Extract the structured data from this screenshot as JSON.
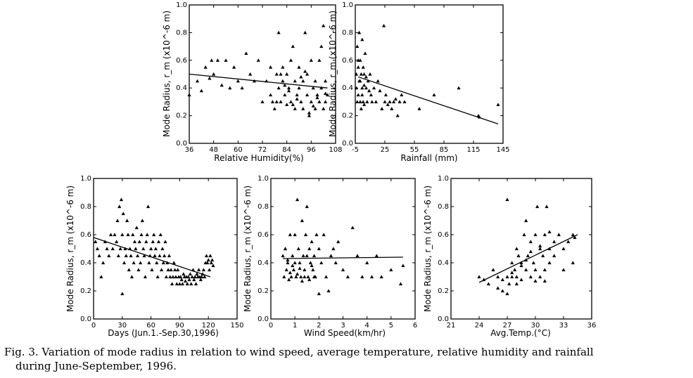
{
  "caption": {
    "line1": "Fig. 3. Variation of mode radius in relation to wind speed, average temperature, relative humidity and rainfall",
    "line2": "during June-September, 1996."
  },
  "chart_data": [
    {
      "id": "humidity",
      "type": "scatter",
      "xlabel": "Relative Humidity(%)",
      "ylabel": "Mode Radius, r_m (x10^-6 m)",
      "xlim": [
        36,
        108
      ],
      "ylim": [
        0,
        1.0
      ],
      "xticks": [
        "36",
        "48",
        "60",
        "72",
        "84",
        "96",
        "108"
      ],
      "yticks": [
        "0.0",
        "0.2",
        "0.4",
        "0.6",
        "0.8",
        "1.0"
      ],
      "x": [
        36,
        40,
        42,
        44,
        46,
        47,
        48,
        50,
        52,
        54,
        56,
        58,
        60,
        62,
        64,
        66,
        68,
        70,
        72,
        74,
        76,
        76,
        77,
        78,
        79,
        80,
        80,
        81,
        82,
        82,
        83,
        84,
        84,
        85,
        86,
        86,
        87,
        88,
        88,
        89,
        90,
        90,
        91,
        92,
        92,
        93,
        94,
        94,
        95,
        96,
        96,
        97,
        98,
        98,
        99,
        100,
        100,
        101,
        102,
        102,
        103,
        103,
        104,
        79,
        81,
        83,
        85,
        87,
        89,
        91,
        93,
        95,
        97,
        99,
        101,
        103
      ],
      "y": [
        0.35,
        0.45,
        0.38,
        0.55,
        0.47,
        0.6,
        0.5,
        0.6,
        0.42,
        0.6,
        0.4,
        0.55,
        0.45,
        0.4,
        0.65,
        0.5,
        0.45,
        0.6,
        0.3,
        0.45,
        0.35,
        0.55,
        0.3,
        0.25,
        0.5,
        0.8,
        0.4,
        0.3,
        0.55,
        0.45,
        0.35,
        0.5,
        0.28,
        0.4,
        0.6,
        0.3,
        0.7,
        0.45,
        0.25,
        0.35,
        0.4,
        0.55,
        0.3,
        0.25,
        0.45,
        0.8,
        0.35,
        0.5,
        0.2,
        0.3,
        0.6,
        0.4,
        0.25,
        0.45,
        0.35,
        0.6,
        0.3,
        0.4,
        0.25,
        0.85,
        0.3,
        0.45,
        0.35,
        0.3,
        0.5,
        0.42,
        0.38,
        0.28,
        0.32,
        0.48,
        0.52,
        0.22,
        0.27,
        0.33,
        0.7,
        0.36
      ],
      "trend": [
        [
          36,
          0.5
        ],
        [
          104,
          0.4
        ]
      ]
    },
    {
      "id": "rainfall",
      "type": "scatter",
      "xlabel": "Rainfall (mm)",
      "ylabel": "Mode Radius, r_m (x10^-6 m)",
      "xlim": [
        -5,
        145
      ],
      "ylim": [
        0,
        1.0
      ],
      "xticks": [
        "-5",
        "25",
        "55",
        "85",
        "115",
        "145"
      ],
      "yticks": [
        "0.0",
        "0.2",
        "0.4",
        "0.6",
        "0.8",
        "1.0"
      ],
      "x": [
        -4,
        -3,
        -3,
        -2,
        -2,
        -1,
        -1,
        0,
        0,
        1,
        1,
        2,
        2,
        3,
        3,
        4,
        4,
        5,
        6,
        7,
        8,
        9,
        10,
        11,
        12,
        14,
        16,
        18,
        20,
        22,
        24,
        25,
        26,
        28,
        30,
        32,
        34,
        36,
        38,
        40,
        42,
        45,
        60,
        75,
        100,
        120,
        121,
        140,
        -4,
        -2,
        0,
        2,
        4,
        6
      ],
      "y": [
        0.4,
        0.7,
        0.3,
        0.55,
        0.35,
        0.8,
        0.45,
        0.6,
        0.3,
        0.5,
        0.25,
        0.75,
        0.4,
        0.55,
        0.3,
        0.5,
        0.28,
        0.65,
        0.4,
        0.3,
        0.45,
        0.38,
        0.5,
        0.35,
        0.3,
        0.4,
        0.3,
        0.45,
        0.38,
        0.25,
        0.85,
        0.3,
        0.35,
        0.28,
        0.3,
        0.25,
        0.3,
        0.32,
        0.2,
        0.3,
        0.35,
        0.3,
        0.25,
        0.35,
        0.4,
        0.2,
        0.19,
        0.28,
        0.5,
        0.6,
        0.45,
        0.35,
        0.42,
        0.48
      ],
      "trend": [
        [
          -2,
          0.48
        ],
        [
          140,
          0.14
        ]
      ]
    },
    {
      "id": "days",
      "type": "scatter",
      "xlabel": "Days (Jun.1.-Sep.30,1996)",
      "ylabel": "Mode Radius, r_m (x10^-6 m)",
      "xlim": [
        0,
        150
      ],
      "ylim": [
        0,
        1.0
      ],
      "xticks": [
        "0",
        "30",
        "60",
        "90",
        "120",
        "150"
      ],
      "yticks": [
        "0.0",
        "0.2",
        "0.4",
        "0.6",
        "0.8",
        "1.0"
      ],
      "x": [
        2,
        4,
        6,
        8,
        10,
        12,
        14,
        16,
        18,
        20,
        22,
        24,
        25,
        26,
        27,
        28,
        29,
        30,
        31,
        32,
        33,
        34,
        35,
        36,
        37,
        38,
        39,
        40,
        41,
        42,
        43,
        44,
        45,
        46,
        47,
        48,
        49,
        50,
        51,
        52,
        53,
        54,
        55,
        56,
        57,
        58,
        59,
        60,
        61,
        62,
        63,
        64,
        65,
        66,
        67,
        68,
        69,
        70,
        71,
        72,
        73,
        74,
        75,
        76,
        77,
        78,
        79,
        80,
        81,
        82,
        83,
        84,
        85,
        86,
        87,
        88,
        89,
        90,
        91,
        92,
        93,
        94,
        95,
        96,
        97,
        98,
        99,
        100,
        101,
        102,
        103,
        104,
        105,
        106,
        107,
        108,
        109,
        110,
        111,
        112,
        113,
        114,
        115,
        116,
        117,
        118,
        119,
        120,
        121,
        122,
        123,
        124,
        125,
        30
      ],
      "y": [
        0.55,
        0.5,
        0.45,
        0.3,
        0.4,
        0.55,
        0.5,
        0.45,
        0.6,
        0.5,
        0.6,
        0.55,
        0.7,
        0.45,
        0.8,
        0.5,
        0.85,
        0.6,
        0.75,
        0.4,
        0.5,
        0.45,
        0.7,
        0.6,
        0.35,
        0.5,
        0.45,
        0.3,
        0.6,
        0.4,
        0.55,
        0.5,
        0.65,
        0.45,
        0.35,
        0.55,
        0.4,
        0.6,
        0.7,
        0.5,
        0.45,
        0.3,
        0.55,
        0.6,
        0.8,
        0.4,
        0.45,
        0.5,
        0.35,
        0.55,
        0.6,
        0.45,
        0.5,
        0.4,
        0.3,
        0.55,
        0.45,
        0.6,
        0.35,
        0.5,
        0.4,
        0.45,
        0.55,
        0.3,
        0.4,
        0.35,
        0.45,
        0.3,
        0.35,
        0.25,
        0.3,
        0.4,
        0.35,
        0.3,
        0.25,
        0.35,
        0.3,
        0.25,
        0.3,
        0.28,
        0.25,
        0.32,
        0.3,
        0.27,
        0.3,
        0.25,
        0.3,
        0.28,
        0.32,
        0.25,
        0.3,
        0.35,
        0.28,
        0.3,
        0.25,
        0.32,
        0.3,
        0.35,
        0.3,
        0.28,
        0.3,
        0.32,
        0.35,
        0.3,
        0.4,
        0.45,
        0.4,
        0.42,
        0.35,
        0.45,
        0.4,
        0.42,
        0.38,
        0.18
      ],
      "trend": [
        [
          0,
          0.58
        ],
        [
          122,
          0.3
        ]
      ]
    },
    {
      "id": "wind",
      "type": "scatter",
      "xlabel": "Wind Speed(km/hr)",
      "ylabel": "Mode Radius, r_m (x10^-6 m)",
      "xlim": [
        0,
        6
      ],
      "ylim": [
        0,
        1.0
      ],
      "xticks": [
        "0",
        "1",
        "2",
        "3",
        "4",
        "5",
        "6"
      ],
      "yticks": [
        "0.0",
        "0.2",
        "0.4",
        "0.6",
        "0.8",
        "1.0"
      ],
      "x": [
        0.5,
        0.55,
        0.6,
        0.65,
        0.7,
        0.75,
        0.8,
        0.85,
        0.9,
        0.95,
        1.0,
        1.05,
        1.1,
        1.15,
        1.2,
        1.25,
        1.3,
        1.35,
        1.4,
        1.45,
        1.5,
        1.55,
        1.6,
        1.65,
        1.7,
        1.75,
        1.8,
        1.85,
        1.9,
        2.0,
        2.1,
        2.2,
        2.3,
        2.4,
        2.5,
        2.6,
        2.7,
        2.8,
        3.0,
        3.2,
        3.4,
        3.6,
        3.8,
        4.0,
        4.2,
        4.4,
        4.6,
        5.0,
        5.4,
        5.5,
        0.7,
        0.9,
        1.1,
        1.3,
        1.5,
        1.7,
        0.6,
        0.8,
        1.0,
        1.2,
        1.4,
        1.6,
        1.8,
        2.0
      ],
      "y": [
        0.45,
        0.3,
        0.5,
        0.35,
        0.4,
        0.28,
        0.6,
        0.3,
        0.45,
        0.35,
        0.6,
        0.3,
        0.85,
        0.5,
        0.4,
        0.3,
        0.7,
        0.45,
        0.35,
        0.6,
        0.8,
        0.3,
        0.5,
        0.4,
        0.55,
        0.35,
        0.45,
        0.3,
        0.6,
        0.5,
        0.4,
        0.6,
        0.3,
        0.2,
        0.45,
        0.5,
        0.4,
        0.55,
        0.35,
        0.3,
        0.65,
        0.45,
        0.3,
        0.4,
        0.3,
        0.45,
        0.3,
        0.35,
        0.25,
        0.38,
        0.42,
        0.38,
        0.32,
        0.27,
        0.45,
        0.38,
        0.5,
        0.33,
        0.4,
        0.36,
        0.3,
        0.28,
        0.3,
        0.18
      ],
      "trend": [
        [
          0.5,
          0.43
        ],
        [
          5.5,
          0.44
        ]
      ]
    },
    {
      "id": "temp",
      "type": "scatter",
      "xlabel": "Avg.Temp.(°C)",
      "ylabel": "Mode Radius, r_m (x10^-6 m)",
      "xlim": [
        21,
        36
      ],
      "ylim": [
        0,
        1.0
      ],
      "xticks": [
        "21",
        "24",
        "27",
        "30",
        "33",
        "36"
      ],
      "yticks": [
        "0.0",
        "0.2",
        "0.4",
        "0.6",
        "0.8",
        "1.0"
      ],
      "x": [
        24,
        24.5,
        25,
        25.5,
        26,
        26,
        26.5,
        27,
        27,
        27.2,
        27.5,
        27.5,
        27.8,
        28,
        28,
        28.2,
        28.5,
        28.5,
        28.8,
        29,
        29,
        29.2,
        29.5,
        29.5,
        29.8,
        30,
        30,
        30.2,
        30.5,
        30.5,
        30.8,
        31,
        31,
        31.2,
        31.5,
        31.5,
        32,
        32,
        32.5,
        33,
        33,
        33.5,
        34,
        34,
        34.2,
        27,
        28,
        29,
        30,
        31,
        26.5,
        27.5,
        28.5,
        29.5,
        30.5,
        31.5
      ],
      "y": [
        0.3,
        0.28,
        0.25,
        0.35,
        0.3,
        0.22,
        0.28,
        0.3,
        0.85,
        0.25,
        0.4,
        0.3,
        0.35,
        0.5,
        0.3,
        0.45,
        0.4,
        0.28,
        0.6,
        0.35,
        0.7,
        0.45,
        0.3,
        0.55,
        0.4,
        0.6,
        0.35,
        0.8,
        0.5,
        0.3,
        0.45,
        0.6,
        0.35,
        0.8,
        0.5,
        0.4,
        0.55,
        0.45,
        0.6,
        0.5,
        0.35,
        0.55,
        0.6,
        0.4,
        0.58,
        0.18,
        0.25,
        0.42,
        0.27,
        0.27,
        0.2,
        0.33,
        0.38,
        0.48,
        0.52,
        0.62
      ],
      "trend": [
        [
          24,
          0.26
        ],
        [
          34.5,
          0.6
        ]
      ]
    }
  ]
}
